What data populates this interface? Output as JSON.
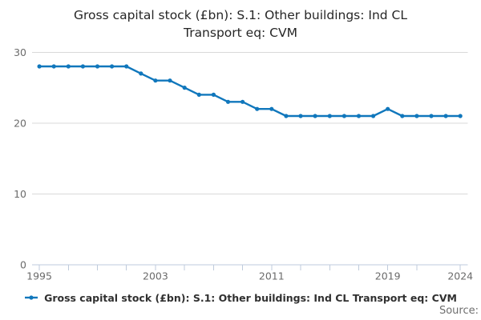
{
  "title": {
    "lines": [
      "Gross capital stock (£bn): S.1: Other buildings: Ind CL",
      "Transport eq: CVM"
    ]
  },
  "legend": {
    "label": "Gross capital stock (£bn): S.1: Other buildings: Ind CL Transport eq: CVM"
  },
  "source_label": "Source:",
  "colors": {
    "line": "#1077bc",
    "grid": "#d9d9d9",
    "axis": "#bfcbdc",
    "tick_label": "#6b6b6b",
    "title_text": "#262626",
    "legend_text": "#303030",
    "source_text": "#6e6e6e"
  },
  "chart_data": {
    "type": "line",
    "title": "Gross capital stock (£bn): S.1: Other buildings: Ind CL Transport eq: CVM",
    "xlabel": "",
    "ylabel": "",
    "xlim": [
      1994.5,
      2024.5
    ],
    "ylim": [
      0,
      30
    ],
    "yticks": [
      0,
      10,
      20,
      30
    ],
    "xticks": [
      1995,
      1997,
      1999,
      2001,
      2003,
      2005,
      2007,
      2009,
      2011,
      2013,
      2015,
      2017,
      2019,
      2021,
      2024
    ],
    "xtick_labeled": [
      1995,
      2003,
      2011,
      2019,
      2024
    ],
    "grid": "horizontal",
    "legend_position": "bottom",
    "x": [
      1995,
      1996,
      1997,
      1998,
      1999,
      2000,
      2001,
      2002,
      2003,
      2004,
      2005,
      2006,
      2007,
      2008,
      2009,
      2010,
      2011,
      2012,
      2013,
      2014,
      2015,
      2016,
      2017,
      2018,
      2019,
      2020,
      2021,
      2022,
      2023,
      2024
    ],
    "series": [
      {
        "name": "Gross capital stock (£bn): S.1: Other buildings: Ind CL Transport eq: CVM",
        "values": [
          28,
          28,
          28,
          28,
          28,
          28,
          28,
          27,
          26,
          26,
          25,
          24,
          24,
          23,
          23,
          22,
          22,
          21,
          21,
          21,
          21,
          21,
          21,
          21,
          22,
          21,
          21,
          21,
          21,
          21
        ]
      }
    ]
  }
}
